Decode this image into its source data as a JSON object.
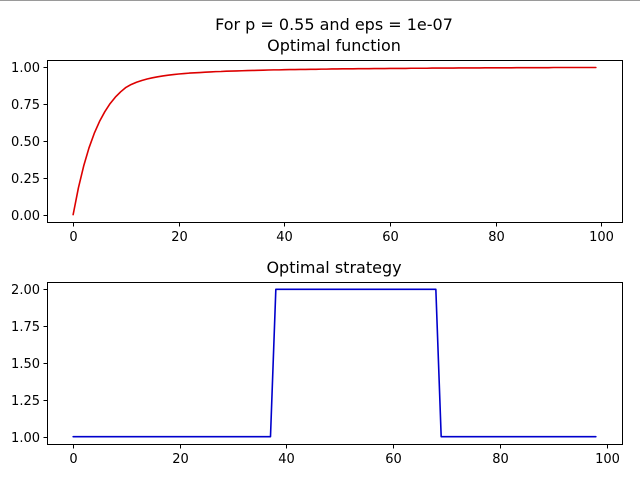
{
  "figure": {
    "suptitle": "For p = 0.55 and eps = 1e-07"
  },
  "chart_data": [
    {
      "type": "line",
      "title": "Optimal function",
      "xlabel": "",
      "ylabel": "",
      "xlim": [
        -4.95,
        103.95
      ],
      "ylim": [
        -0.05,
        1.05
      ],
      "xticks": [
        0,
        20,
        40,
        60,
        80,
        100
      ],
      "yticks": [
        0.0,
        0.25,
        0.5,
        0.75,
        1.0
      ],
      "xtick_labels": [
        "0",
        "20",
        "40",
        "60",
        "80",
        "100"
      ],
      "ytick_labels": [
        "0.00",
        "0.25",
        "0.50",
        "0.75",
        "1.00"
      ],
      "grid": false,
      "series": [
        {
          "color": "#dd0000",
          "x": [
            0,
            1,
            2,
            3,
            4,
            5,
            6,
            7,
            8,
            9,
            10,
            11,
            12,
            13,
            14,
            15,
            16,
            17,
            18,
            19,
            20,
            21,
            22,
            23,
            24,
            25,
            26,
            27,
            28,
            29,
            30,
            31,
            32,
            33,
            34,
            35,
            36,
            37,
            38,
            39,
            40,
            41,
            42,
            43,
            44,
            45,
            46,
            47,
            48,
            49,
            50,
            51,
            52,
            53,
            54,
            55,
            56,
            57,
            58,
            59,
            60,
            61,
            62,
            63,
            64,
            65,
            66,
            67,
            68,
            69,
            70,
            71,
            72,
            73,
            74,
            75,
            76,
            77,
            78,
            79,
            80,
            81,
            82,
            83,
            84,
            85,
            86,
            87,
            88,
            89,
            90,
            91,
            92,
            93,
            94,
            95,
            96,
            97,
            98,
            99
          ],
          "y": [
            0.0,
            0.182,
            0.331,
            0.453,
            0.552,
            0.633,
            0.699,
            0.754,
            0.798,
            0.834,
            0.864,
            0.884,
            0.899,
            0.911,
            0.921,
            0.929,
            0.936,
            0.942,
            0.947,
            0.951,
            0.955,
            0.958,
            0.961,
            0.963,
            0.965,
            0.967,
            0.969,
            0.971,
            0.972,
            0.974,
            0.975,
            0.976,
            0.977,
            0.978,
            0.979,
            0.98,
            0.981,
            0.982,
            0.983,
            0.983,
            0.984,
            0.985,
            0.985,
            0.986,
            0.986,
            0.987,
            0.987,
            0.988,
            0.988,
            0.989,
            0.989,
            0.99,
            0.99,
            0.99,
            0.991,
            0.991,
            0.991,
            0.992,
            0.992,
            0.992,
            0.993,
            0.993,
            0.993,
            0.993,
            0.994,
            0.994,
            0.994,
            0.994,
            0.995,
            0.995,
            0.995,
            0.995,
            0.995,
            0.996,
            0.996,
            0.996,
            0.996,
            0.996,
            0.997,
            0.997,
            0.997,
            0.997,
            0.997,
            0.997,
            0.998,
            0.998,
            0.998,
            0.998,
            0.998,
            0.998,
            0.998,
            0.999,
            0.999,
            0.999,
            0.999,
            0.999,
            0.999,
            0.999,
            0.999,
            0.999
          ]
        }
      ]
    },
    {
      "type": "line",
      "title": "Optimal strategy",
      "xlabel": "",
      "ylabel": "",
      "xlim": [
        -4.9,
        102.9
      ],
      "ylim": [
        0.95,
        2.05
      ],
      "xticks": [
        0,
        20,
        40,
        60,
        80,
        100
      ],
      "yticks": [
        1.0,
        1.25,
        1.5,
        1.75,
        2.0
      ],
      "xtick_labels": [
        "0",
        "20",
        "40",
        "60",
        "80",
        "100"
      ],
      "ytick_labels": [
        "1.00",
        "1.25",
        "1.50",
        "1.75",
        "2.00"
      ],
      "grid": false,
      "series": [
        {
          "color": "#0000cc",
          "x": [
            0,
            37,
            38,
            68,
            69,
            98
          ],
          "y": [
            1,
            1,
            2,
            2,
            1,
            1
          ]
        }
      ]
    }
  ]
}
